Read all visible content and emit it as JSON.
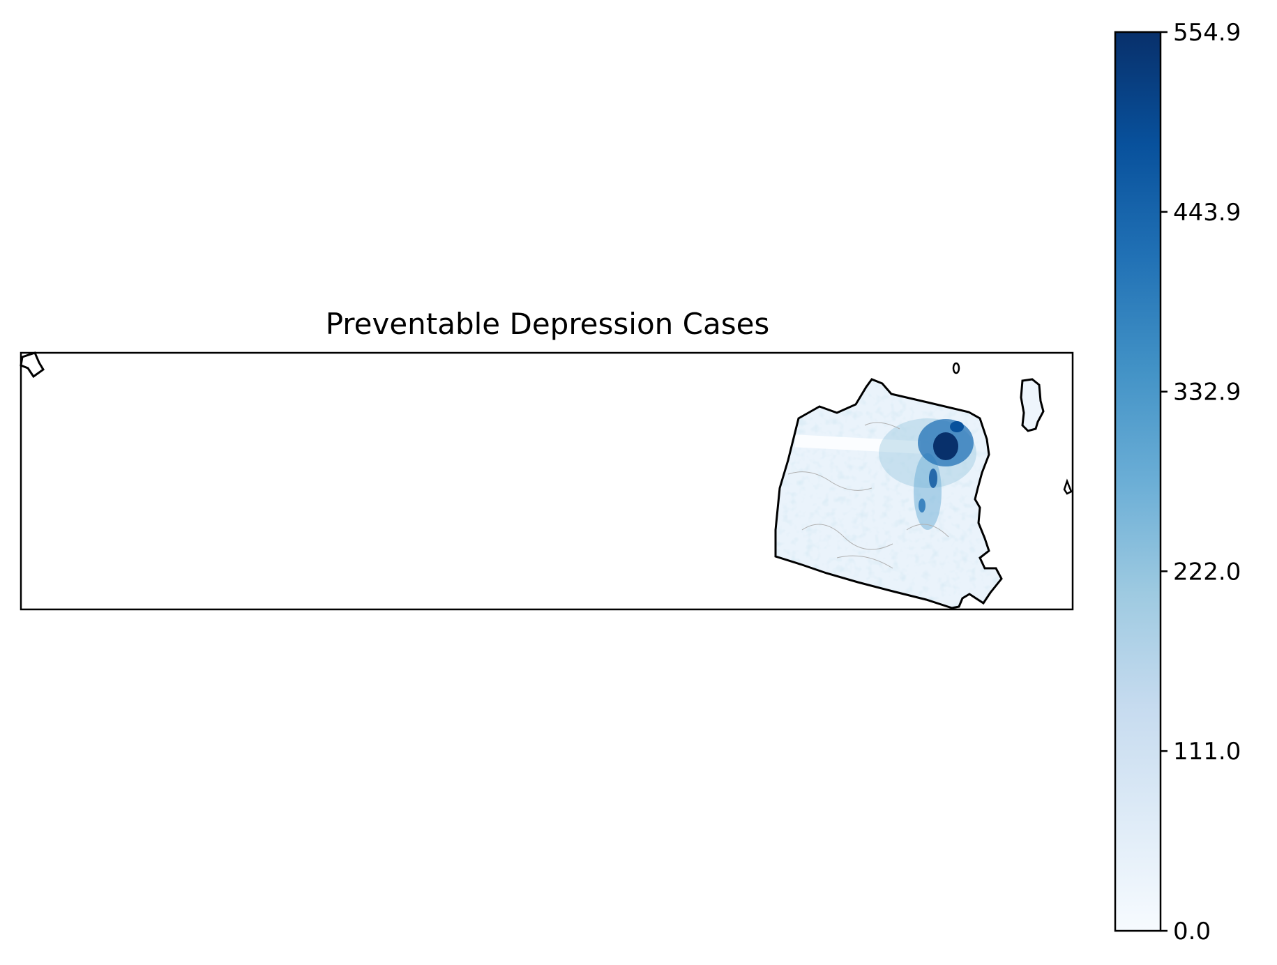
{
  "chart_data": {
    "type": "heatmap",
    "title": "Preventable Depression Cases",
    "colormap": "Blues",
    "colorbar": {
      "min": 0.0,
      "max": 554.9,
      "ticks": [
        0.0,
        111.0,
        222.0,
        332.9,
        443.9,
        554.9
      ],
      "tick_labels": [
        "0.0",
        "111.0",
        "222.0",
        "332.9",
        "443.9",
        "554.9"
      ],
      "color_low": "#f7fbff",
      "color_high": "#08306b"
    },
    "hotspot": {
      "region": "north-east of main landmass",
      "approx_value": 554.9
    },
    "background_value_range": [
      0,
      111.0
    ]
  }
}
